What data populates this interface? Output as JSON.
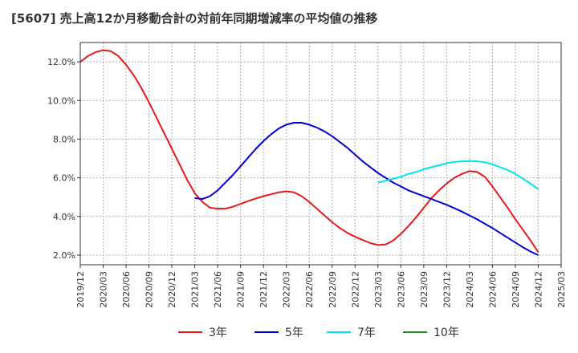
{
  "chart_data": {
    "type": "line",
    "title": "[5607]  売上高12か月移動合計の対前年同期増減率の平均値の推移",
    "xlabel": "",
    "ylabel": "",
    "x_ticks": [
      "2019/12",
      "2020/03",
      "2020/06",
      "2020/09",
      "2020/12",
      "2021/03",
      "2021/06",
      "2021/09",
      "2021/12",
      "2022/03",
      "2022/06",
      "2022/09",
      "2022/12",
      "2023/03",
      "2023/06",
      "2023/09",
      "2023/12",
      "2024/03",
      "2024/06",
      "2024/09",
      "2024/12",
      "2025/03"
    ],
    "x_range": [
      "2019/12",
      "2025/03"
    ],
    "y_ticks": [
      "2.0%",
      "4.0%",
      "6.0%",
      "8.0%",
      "10.0%",
      "12.0%"
    ],
    "y_tick_values": [
      2,
      4,
      6,
      8,
      10,
      12
    ],
    "ylim": [
      1.5,
      13.0
    ],
    "grid": true,
    "legend_position": "bottom",
    "series": [
      {
        "name": "3年",
        "color": "#e41a1c",
        "x": [
          "2019/12",
          "2020/01",
          "2020/02",
          "2020/03",
          "2020/04",
          "2020/05",
          "2020/06",
          "2020/07",
          "2020/08",
          "2020/09",
          "2020/10",
          "2020/11",
          "2020/12",
          "2021/01",
          "2021/02",
          "2021/03",
          "2021/04",
          "2021/05",
          "2021/06",
          "2021/07",
          "2021/08",
          "2021/09",
          "2021/10",
          "2021/11",
          "2021/12",
          "2022/01",
          "2022/02",
          "2022/03",
          "2022/04",
          "2022/05",
          "2022/06",
          "2022/07",
          "2022/08",
          "2022/09",
          "2022/10",
          "2022/11",
          "2022/12",
          "2023/01",
          "2023/02",
          "2023/03",
          "2023/04",
          "2023/05",
          "2023/06",
          "2023/07",
          "2023/08",
          "2023/09",
          "2023/10",
          "2023/11",
          "2023/12",
          "2024/01",
          "2024/02",
          "2024/03",
          "2024/04",
          "2024/05",
          "2024/06",
          "2024/07",
          "2024/08",
          "2024/09",
          "2024/10",
          "2024/11",
          "2024/12"
        ],
        "values": [
          12.0,
          12.3,
          12.5,
          12.6,
          12.55,
          12.3,
          11.85,
          11.3,
          10.65,
          9.9,
          9.1,
          8.3,
          7.5,
          6.7,
          5.9,
          5.2,
          4.75,
          4.45,
          4.4,
          4.4,
          4.5,
          4.65,
          4.8,
          4.93,
          5.05,
          5.15,
          5.25,
          5.3,
          5.25,
          5.05,
          4.75,
          4.4,
          4.05,
          3.7,
          3.4,
          3.15,
          2.95,
          2.78,
          2.62,
          2.52,
          2.55,
          2.75,
          3.1,
          3.5,
          3.95,
          4.45,
          4.95,
          5.35,
          5.7,
          6.0,
          6.2,
          6.35,
          6.3,
          6.05,
          5.55,
          5.0,
          4.45,
          3.85,
          3.3,
          2.75,
          2.15
        ]
      },
      {
        "name": "5年",
        "color": "#0000cd",
        "x": [
          "2021/03",
          "2021/04",
          "2021/05",
          "2021/06",
          "2021/07",
          "2021/08",
          "2021/09",
          "2021/10",
          "2021/11",
          "2021/12",
          "2022/01",
          "2022/02",
          "2022/03",
          "2022/04",
          "2022/05",
          "2022/06",
          "2022/07",
          "2022/08",
          "2022/09",
          "2022/10",
          "2022/11",
          "2022/12",
          "2023/01",
          "2023/02",
          "2023/03",
          "2023/04",
          "2023/05",
          "2023/06",
          "2023/07",
          "2023/08",
          "2023/09",
          "2023/10",
          "2023/11",
          "2023/12",
          "2024/01",
          "2024/02",
          "2024/03",
          "2024/04",
          "2024/05",
          "2024/06",
          "2024/07",
          "2024/08",
          "2024/09",
          "2024/10",
          "2024/11",
          "2024/12"
        ],
        "values": [
          4.95,
          4.9,
          5.05,
          5.35,
          5.75,
          6.15,
          6.6,
          7.05,
          7.5,
          7.9,
          8.25,
          8.55,
          8.75,
          8.85,
          8.85,
          8.75,
          8.6,
          8.4,
          8.15,
          7.85,
          7.55,
          7.2,
          6.85,
          6.55,
          6.25,
          6.0,
          5.75,
          5.55,
          5.35,
          5.2,
          5.05,
          4.9,
          4.75,
          4.6,
          4.43,
          4.25,
          4.05,
          3.85,
          3.62,
          3.4,
          3.15,
          2.9,
          2.65,
          2.4,
          2.18,
          2.0
        ]
      },
      {
        "name": "7年",
        "color": "#00e5ee",
        "x": [
          "2023/03",
          "2023/04",
          "2023/05",
          "2023/06",
          "2023/07",
          "2023/08",
          "2023/09",
          "2023/10",
          "2023/11",
          "2023/12",
          "2024/01",
          "2024/02",
          "2024/03",
          "2024/04",
          "2024/05",
          "2024/06",
          "2024/07",
          "2024/08",
          "2024/09",
          "2024/10",
          "2024/11",
          "2024/12"
        ],
        "values": [
          5.75,
          5.85,
          5.95,
          6.05,
          6.2,
          6.3,
          6.45,
          6.55,
          6.65,
          6.75,
          6.82,
          6.85,
          6.87,
          6.85,
          6.8,
          6.7,
          6.55,
          6.4,
          6.2,
          5.95,
          5.7,
          5.4
        ]
      },
      {
        "name": "10年",
        "color": "#228b22",
        "x": [],
        "values": []
      }
    ]
  }
}
